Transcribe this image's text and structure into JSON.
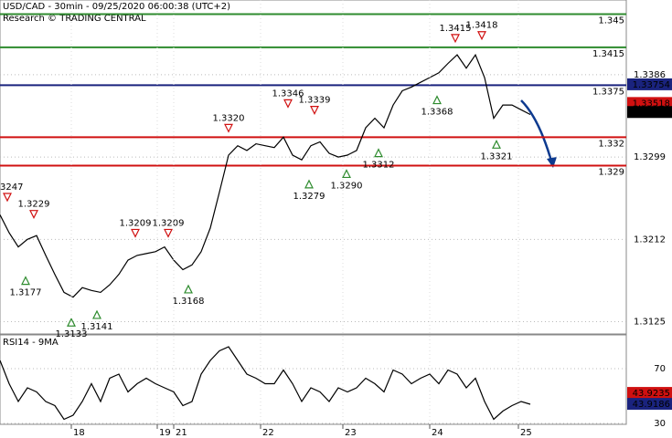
{
  "header": {
    "title": "USD/CAD - 30min - 09/25/2020 06:00:38 (UTC+2)",
    "subtitle": "Research © TRADING CENTRAL"
  },
  "chart_data": [
    {
      "type": "line",
      "x": [
        0,
        5,
        10,
        15,
        20,
        25,
        30,
        35,
        40,
        45,
        50,
        55,
        60,
        65,
        70,
        75,
        80,
        85,
        90,
        95,
        100,
        105,
        110,
        115,
        120,
        125,
        130,
        135,
        140,
        145,
        150,
        155,
        160,
        165,
        170,
        175,
        180,
        185,
        190,
        195,
        200,
        205,
        210,
        215,
        220,
        225,
        230,
        235,
        240,
        245,
        250,
        255,
        260,
        265,
        270,
        275,
        280,
        285,
        290
      ],
      "series": [
        {
          "color": "#000000",
          "values": [
            1.3238,
            1.3219,
            1.3204,
            1.3212,
            1.3216,
            1.3195,
            1.3175,
            1.3156,
            1.3151,
            1.3161,
            1.3158,
            1.3156,
            1.3164,
            1.3175,
            1.319,
            1.3195,
            1.3197,
            1.3199,
            1.3204,
            1.319,
            1.318,
            1.3185,
            1.3199,
            1.3224,
            1.3262,
            1.3301,
            1.3311,
            1.3306,
            1.3313,
            1.3311,
            1.3309,
            1.332,
            1.3301,
            1.3296,
            1.3311,
            1.3315,
            1.3303,
            1.3299,
            1.3301,
            1.3306,
            1.333,
            1.334,
            1.333,
            1.3354,
            1.3369,
            1.3373,
            1.3378,
            1.3383,
            1.3388,
            1.3398,
            1.3407,
            1.3393,
            1.3407,
            1.3383,
            1.334,
            1.3354,
            1.3354,
            1.3349,
            1.3344
          ]
        }
      ],
      "xlim": [
        0,
        342.5
      ],
      "ylim": [
        1.3112,
        1.3465
      ],
      "yticks": [
        1.3386,
        1.3299,
        1.3212,
        1.3125
      ],
      "grid": true,
      "levels": [
        {
          "value": 1.345,
          "color": "#2e8b2e"
        },
        {
          "value": 1.3415,
          "color": "#2e8b2e"
        },
        {
          "value": 1.3375,
          "color": "#1a237e"
        },
        {
          "value": 1.332,
          "color": "#d01010"
        },
        {
          "value": 1.329,
          "color": "#d01010"
        }
      ],
      "price_tags": [
        {
          "value": 1.33754,
          "color": "#1a237e"
        },
        {
          "value": 1.33518,
          "color": "#d01010"
        },
        {
          "value": 1.3349,
          "color": "#000000"
        }
      ],
      "annotations": [
        {
          "x": 4,
          "value": 1.3247,
          "label": "1.3247",
          "kind": "peak"
        },
        {
          "x": 18.5,
          "value": 1.3229,
          "label": "1.3229",
          "kind": "peak"
        },
        {
          "x": 14,
          "value": 1.3177,
          "label": "1.3177",
          "kind": "trough"
        },
        {
          "x": 39,
          "value": 1.3133,
          "label": "1.3133",
          "kind": "trough"
        },
        {
          "x": 53,
          "value": 1.3141,
          "label": "1.3141",
          "kind": "trough"
        },
        {
          "x": 74,
          "value": 1.3209,
          "label": "1.3209",
          "kind": "peak"
        },
        {
          "x": 92,
          "value": 1.3209,
          "label": "1.3209",
          "kind": "peak"
        },
        {
          "x": 103,
          "value": 1.3168,
          "label": "1.3168",
          "kind": "trough"
        },
        {
          "x": 125,
          "value": 1.332,
          "label": "1.3320",
          "kind": "peak"
        },
        {
          "x": 157.5,
          "value": 1.3346,
          "label": "1.3346",
          "kind": "peak"
        },
        {
          "x": 172,
          "value": 1.3339,
          "label": "1.3339",
          "kind": "peak"
        },
        {
          "x": 169,
          "value": 1.3279,
          "label": "1.3279",
          "kind": "trough"
        },
        {
          "x": 189.5,
          "value": 1.329,
          "label": "1.3290",
          "kind": "trough"
        },
        {
          "x": 207,
          "value": 1.3312,
          "label": "1.3312",
          "kind": "trough"
        },
        {
          "x": 239,
          "value": 1.3368,
          "label": "1.3368",
          "kind": "trough"
        },
        {
          "x": 249,
          "value": 1.3415,
          "label": "1.3415",
          "kind": "peak"
        },
        {
          "x": 263.5,
          "value": 1.3418,
          "label": "1.3418",
          "kind": "peak"
        },
        {
          "x": 271.5,
          "value": 1.3321,
          "label": "1.3321",
          "kind": "trough"
        }
      ]
    },
    {
      "type": "line",
      "title": "RSI14 - 9MA",
      "x": [
        0,
        5,
        10,
        15,
        20,
        25,
        30,
        35,
        40,
        45,
        50,
        55,
        60,
        65,
        70,
        75,
        80,
        85,
        90,
        95,
        100,
        105,
        110,
        115,
        120,
        125,
        130,
        135,
        140,
        145,
        150,
        155,
        160,
        165,
        170,
        175,
        180,
        185,
        190,
        195,
        200,
        205,
        210,
        215,
        220,
        225,
        230,
        235,
        240,
        245,
        250,
        255,
        260,
        265,
        270,
        275,
        280,
        285,
        290
      ],
      "series": [
        {
          "color": "#000000",
          "values": [
            76,
            59,
            46,
            56,
            53,
            46,
            43,
            33,
            36,
            46,
            59,
            46,
            63,
            66,
            53,
            59,
            63,
            59,
            56,
            53,
            43,
            46,
            66,
            76,
            83,
            86,
            76,
            66,
            63,
            59,
            59,
            69,
            59,
            46,
            56,
            53,
            46,
            56,
            53,
            56,
            63,
            59,
            53,
            69,
            66,
            59,
            63,
            66,
            59,
            69,
            66,
            56,
            63,
            46,
            33,
            39,
            43,
            46,
            44
          ]
        }
      ],
      "xlim": [
        0,
        342.5
      ],
      "ylim": [
        29.3,
        94.7
      ],
      "yticks": [
        70,
        30
      ],
      "xticks": [
        {
          "value": 39,
          "label": "18"
        },
        {
          "value": 86,
          "label": "19"
        },
        {
          "value": 95,
          "label": "21"
        },
        {
          "value": 142.5,
          "label": "22"
        },
        {
          "value": 187.5,
          "label": "23"
        },
        {
          "value": 235,
          "label": "24"
        },
        {
          "value": 283.5,
          "label": "25"
        }
      ],
      "grid": true,
      "price_tags": [
        {
          "value": 43.9235,
          "color": "#d01010"
        },
        {
          "value": 43.9186,
          "color": "#1a237e"
        }
      ]
    }
  ]
}
